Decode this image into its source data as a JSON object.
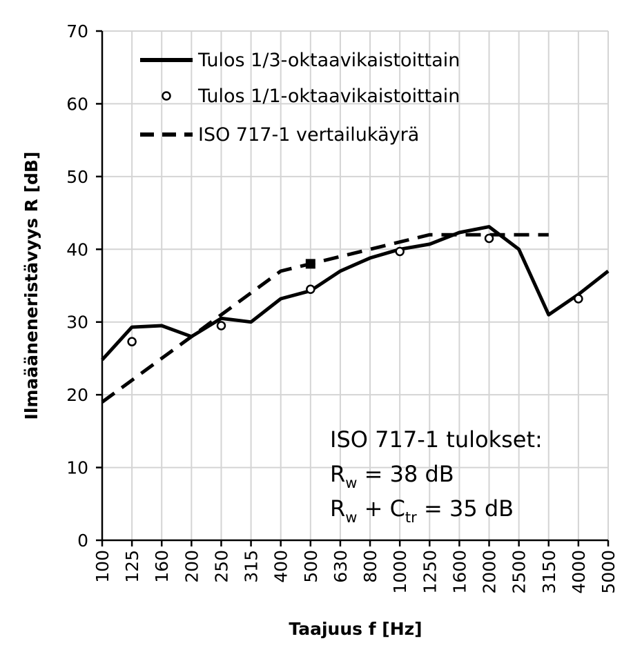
{
  "chart_data": {
    "type": "line",
    "xlabel": "Taajuus f [Hz]",
    "ylabel": "Ilmaääneneristävyys  R [dB]",
    "ylim": [
      0,
      70
    ],
    "yticks": [
      0,
      10,
      20,
      30,
      40,
      50,
      60,
      70
    ],
    "grid": true,
    "legend_position": "top-left",
    "categories": [
      "100",
      "125",
      "160",
      "200",
      "250",
      "315",
      "400",
      "500",
      "630",
      "800",
      "1000",
      "1250",
      "1600",
      "2000",
      "2500",
      "3150",
      "4000",
      "5000"
    ],
    "series": [
      {
        "name": "Tulos 1/3-oktaavikaistoittain",
        "style": "solid",
        "color": "#000000",
        "values": [
          24.8,
          29.3,
          29.5,
          28.0,
          30.5,
          30.0,
          33.2,
          34.3,
          37.0,
          38.8,
          40.0,
          40.7,
          42.3,
          43.1,
          40.0,
          31.0,
          33.8,
          37.0
        ]
      },
      {
        "name": "Tulos 1/1-oktaavikaistoittain",
        "style": "markers",
        "color": "#000000",
        "points": [
          {
            "x": "125",
            "y": 27.3
          },
          {
            "x": "250",
            "y": 29.5
          },
          {
            "x": "500",
            "y": 34.5
          },
          {
            "x": "1000",
            "y": 39.7
          },
          {
            "x": "2000",
            "y": 41.5
          },
          {
            "x": "4000",
            "y": 33.2
          }
        ]
      },
      {
        "name": "ISO 717-1 vertailukäyrä",
        "style": "dashed",
        "color": "#000000",
        "points": [
          {
            "x": "100",
            "y": 19
          },
          {
            "x": "125",
            "y": 22
          },
          {
            "x": "160",
            "y": 25
          },
          {
            "x": "200",
            "y": 28
          },
          {
            "x": "250",
            "y": 31
          },
          {
            "x": "315",
            "y": 34
          },
          {
            "x": "400",
            "y": 37
          },
          {
            "x": "500",
            "y": 38
          },
          {
            "x": "630",
            "y": 39
          },
          {
            "x": "800",
            "y": 40
          },
          {
            "x": "1000",
            "y": 41
          },
          {
            "x": "1250",
            "y": 42
          },
          {
            "x": "1600",
            "y": 42
          },
          {
            "x": "2000",
            "y": 42
          },
          {
            "x": "2500",
            "y": 42
          },
          {
            "x": "3150",
            "y": 42
          }
        ],
        "marker": {
          "x": "500",
          "y": 38
        }
      }
    ],
    "annotation": {
      "line1": "ISO 717-1 tulokset:",
      "line2": {
        "main": "R",
        "sub": "w",
        "rest": " = 38 dB"
      },
      "line3": {
        "main1": "R",
        "sub1": "w",
        "mid": " + C",
        "sub2": "tr",
        "rest": " = 35 dB"
      }
    }
  }
}
